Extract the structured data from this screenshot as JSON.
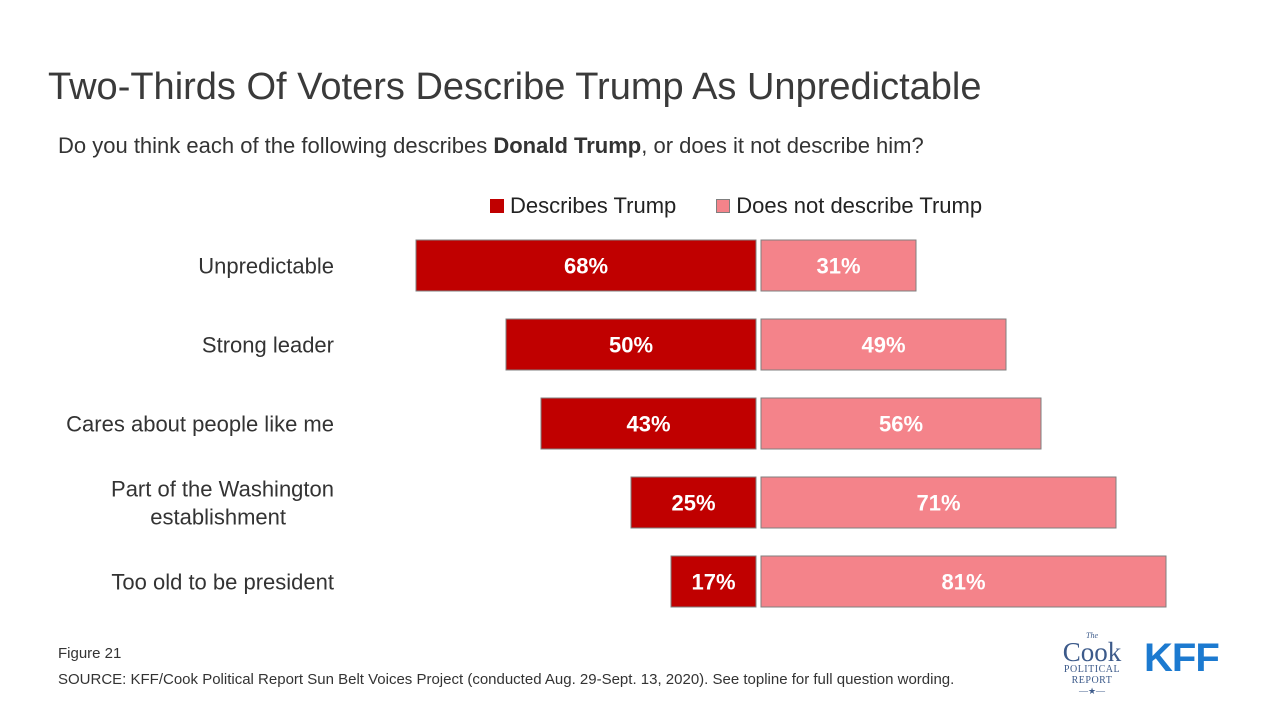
{
  "title": "Two-Thirds Of Voters Describe Trump As Unpredictable",
  "subtitle": {
    "before": "Do you think each of the following describes ",
    "bold": "Donald Trump",
    "after": ", or does it not describe him?"
  },
  "colors": {
    "describes": "#c00000",
    "does_not": "#f4838a",
    "border": "#7f7f7f"
  },
  "chart_data": {
    "type": "bar",
    "orientation": "horizontal-diverging",
    "categories": [
      "Unpredictable",
      "Strong leader",
      "Cares about people like me",
      "Part of the Washington establishment",
      "Too old to be president"
    ],
    "series": [
      {
        "name": "Describes Trump",
        "values": [
          68,
          50,
          43,
          25,
          17
        ],
        "labels": [
          "68%",
          "50%",
          "43%",
          "25%",
          "17%"
        ]
      },
      {
        "name": "Does not describe Trump",
        "values": [
          31,
          49,
          56,
          71,
          81
        ],
        "labels": [
          "31%",
          "49%",
          "56%",
          "71%",
          "81%"
        ]
      }
    ],
    "legend_position": "top"
  },
  "footer": {
    "figure": "Figure 21",
    "source": "SOURCE: KFF/Cook Political Report Sun Belt Voices Project (conducted Aug. 29-Sept. 13, 2020). See topline for full question wording."
  },
  "logos": {
    "cook": {
      "the": "The",
      "main": "Cook",
      "line1": "POLITICAL",
      "line2": "REPORT",
      "star": "—★—"
    },
    "kff": "KFF"
  }
}
